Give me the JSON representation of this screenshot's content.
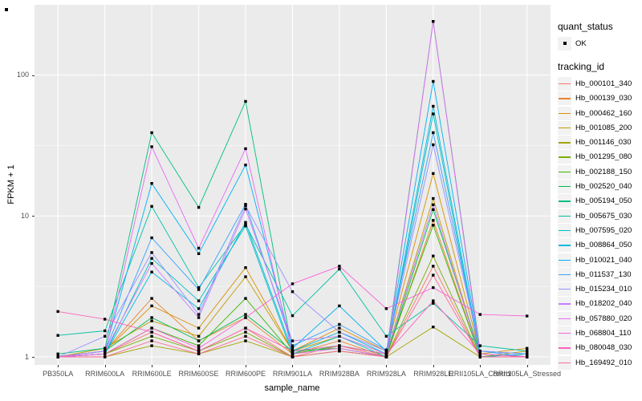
{
  "figure": {
    "y_axis": {
      "title": "FPKM + 1",
      "tick_labels": [
        "100",
        "10",
        "1"
      ],
      "tick_values": [
        100,
        10,
        1
      ]
    },
    "x_axis": {
      "title": "sample_name"
    },
    "legend": {
      "quant_status": {
        "title": "quant_status",
        "items": [
          {
            "label": "OK",
            "glyph": "black-point"
          }
        ]
      },
      "tracking_id": {
        "title": "tracking_id"
      }
    },
    "panel_bg": "#EBEBEB",
    "grid_color": "#FFFFFF",
    "point_color": "#000000",
    "tick_text_color": "#4D4D4D"
  },
  "chart_data": {
    "type": "line",
    "y_scale": "log10",
    "ylim": [
      1,
      312
    ],
    "y_major_gridlines": [
      1,
      10,
      100
    ],
    "y_minor_gridlines": [
      3.162,
      31.62
    ],
    "grid": true,
    "legend_position": "right",
    "title": "",
    "xlabel": "sample_name",
    "ylabel": "FPKM + 1",
    "categories": [
      "PB350LA",
      "RRIM600LA",
      "RRIM600LE",
      "RRIM600SE",
      "RRIM600PE",
      "RRIM901LA",
      "RRIM928BA",
      "RRIM928LA",
      "RRIM928LE",
      "RRII105LA_Control",
      "RRII105LA_Stressed"
    ],
    "series": [
      {
        "name": "Hb_000101_340",
        "color": "#F8766D",
        "values": [
          1.0,
          1.05,
          1.5,
          1.1,
          1.6,
          1.0,
          1.2,
          1.0,
          4.4,
          1.0,
          1.0
        ]
      },
      {
        "name": "Hb_000139_030",
        "color": "#EA8331",
        "values": [
          1.0,
          1.1,
          2.6,
          1.3,
          1.9,
          1.05,
          1.3,
          1.0,
          9.3,
          1.0,
          1.0
        ]
      },
      {
        "name": "Hb_000462_160",
        "color": "#D89000",
        "values": [
          1.0,
          1.1,
          2.3,
          1.6,
          4.3,
          1.1,
          1.6,
          1.1,
          20.0,
          1.05,
          1.15
        ]
      },
      {
        "name": "Hb_001085_200",
        "color": "#C09B00",
        "values": [
          1.0,
          1.15,
          1.8,
          1.4,
          3.7,
          1.1,
          1.4,
          1.05,
          13.3,
          1.0,
          1.1
        ]
      },
      {
        "name": "Hb_001146_030",
        "color": "#A3A500",
        "values": [
          1.0,
          1.0,
          1.2,
          1.05,
          1.3,
          1.0,
          1.1,
          1.0,
          1.63,
          1.0,
          1.0
        ]
      },
      {
        "name": "Hb_001295_080",
        "color": "#7CAE00",
        "values": [
          1.0,
          1.05,
          1.4,
          1.1,
          1.5,
          1.0,
          1.1,
          1.0,
          5.2,
          1.0,
          1.0
        ]
      },
      {
        "name": "Hb_002188_150",
        "color": "#39B600",
        "values": [
          1.0,
          1.05,
          1.6,
          1.2,
          2.6,
          1.05,
          1.2,
          1.05,
          8.6,
          1.0,
          1.05
        ]
      },
      {
        "name": "Hb_002520_040",
        "color": "#00BB4E",
        "values": [
          1.0,
          1.1,
          1.9,
          1.3,
          2.0,
          1.1,
          1.15,
          1.0,
          11.1,
          1.05,
          1.0
        ]
      },
      {
        "name": "Hb_005194_050",
        "color": "#00BF7D",
        "values": [
          1.05,
          1.15,
          39.0,
          11.5,
          65.0,
          1.1,
          1.2,
          1.05,
          240.0,
          1.1,
          1.05
        ]
      },
      {
        "name": "Hb_005675_030",
        "color": "#00C1A3",
        "values": [
          1.42,
          1.53,
          11.7,
          3.1,
          8.7,
          1.96,
          4.2,
          1.4,
          2.4,
          1.2,
          1.1
        ]
      },
      {
        "name": "Hb_007595_020",
        "color": "#00BFC4",
        "values": [
          1.0,
          1.05,
          5.0,
          2.5,
          8.5,
          1.05,
          1.4,
          1.0,
          53.0,
          1.0,
          1.05
        ]
      },
      {
        "name": "Hb_008864_050",
        "color": "#00BAE0",
        "values": [
          1.0,
          1.05,
          4.0,
          2.2,
          9.0,
          1.1,
          1.5,
          1.05,
          60.0,
          1.05,
          1.0
        ]
      },
      {
        "name": "Hb_010021_040",
        "color": "#00B0F6",
        "values": [
          1.0,
          1.1,
          17.0,
          5.4,
          23.0,
          1.15,
          2.3,
          1.1,
          90.0,
          1.1,
          1.05
        ]
      },
      {
        "name": "Hb_011537_130",
        "color": "#35A2FF",
        "values": [
          1.0,
          1.1,
          7.0,
          3.0,
          12.1,
          1.2,
          1.7,
          1.12,
          39.0,
          1.1,
          1.0
        ]
      },
      {
        "name": "Hb_015234_010",
        "color": "#9590FF",
        "values": [
          1.0,
          1.4,
          5.5,
          2.0,
          11.8,
          2.9,
          1.5,
          1.1,
          32.0,
          1.1,
          1.05
        ]
      },
      {
        "name": "Hb_018202_040",
        "color": "#C77CFF",
        "values": [
          1.0,
          1.1,
          4.6,
          1.9,
          11.2,
          1.3,
          1.4,
          1.05,
          12.0,
          1.0,
          1.0
        ]
      },
      {
        "name": "Hb_057880_020",
        "color": "#E76BF3",
        "values": [
          1.0,
          1.05,
          31.0,
          5.9,
          30.0,
          1.05,
          1.15,
          1.0,
          240.0,
          1.05,
          1.0
        ]
      },
      {
        "name": "Hb_068804_110",
        "color": "#FA62DB",
        "values": [
          1.0,
          1.05,
          1.6,
          1.15,
          1.9,
          3.3,
          4.4,
          2.2,
          3.1,
          2.0,
          1.95
        ]
      },
      {
        "name": "Hb_080048_030",
        "color": "#FF62BC",
        "values": [
          2.1,
          1.85,
          1.5,
          1.1,
          1.6,
          1.1,
          1.2,
          1.05,
          2.5,
          1.05,
          1.0
        ]
      },
      {
        "name": "Hb_169492_010",
        "color": "#FF6A98",
        "values": [
          1.0,
          1.0,
          1.3,
          1.05,
          1.4,
          1.0,
          1.1,
          1.0,
          3.8,
          1.0,
          1.0
        ]
      }
    ]
  }
}
